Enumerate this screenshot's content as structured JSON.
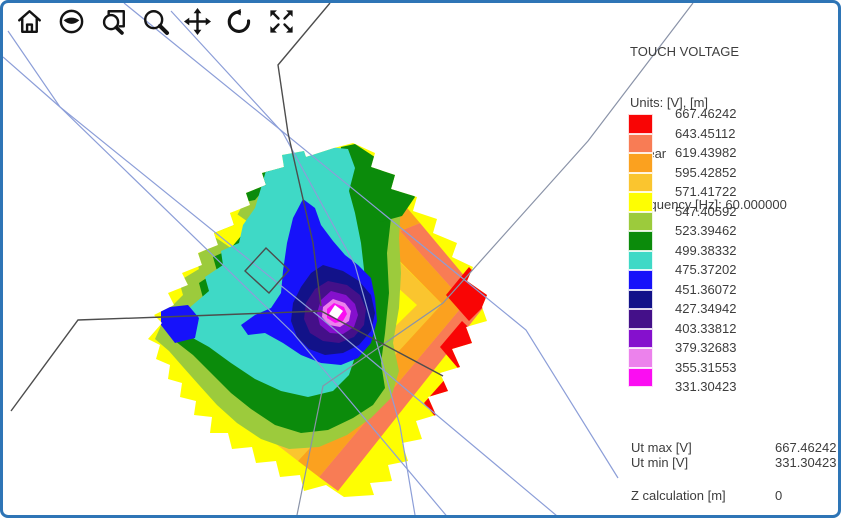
{
  "window": {
    "border_color": "#2E75B6",
    "background": "#FFFFFF"
  },
  "toolbar": {
    "icons": [
      {
        "name": "home-icon"
      },
      {
        "name": "eye-icon"
      },
      {
        "name": "zoom-window-icon"
      },
      {
        "name": "magnifier-icon"
      },
      {
        "name": "pan-icon"
      },
      {
        "name": "rotate-ccw-icon"
      },
      {
        "name": "expand-icon"
      }
    ]
  },
  "header": {
    "title": "TOUCH VOLTAGE",
    "units": "Units: [V], [m]",
    "scale": "Linear",
    "frequency": "Frequency [Hz]: 60.000000"
  },
  "legend": {
    "colors": [
      "#F90505",
      "#F87C55",
      "#FBA11F",
      "#FAC52F",
      "#FEFE02",
      "#9CCB3C",
      "#0B8B0B",
      "#3FD9C6",
      "#1612FA",
      "#121289",
      "#441089",
      "#8510CD",
      "#EC82EC",
      "#FB0DF2"
    ],
    "values": [
      "667.46242",
      "643.45112",
      "619.43982",
      "595.42852",
      "571.41722",
      "547.40592",
      "523.39462",
      "499.38332",
      "475.37202",
      "451.36072",
      "427.34942",
      "403.33812",
      "379.32683",
      "355.31553",
      "331.30423"
    ]
  },
  "stats": {
    "ut_max_label": "Ut max [V]",
    "ut_max_value": "667.46242",
    "ut_min_label": "Ut min [V]",
    "ut_min_value": "331.30423",
    "z_label": "Z calculation [m]",
    "z_value": "0"
  },
  "plot": {
    "conductor_color": "#8C9ED8",
    "slate_line_color": "#8A93A8",
    "grid_line_color": "#4D4D4D",
    "center_color": "#FFFFFF"
  },
  "chart_data": {
    "type": "heatmap",
    "subtype": "contour-map",
    "title": "TOUCH VOLTAGE",
    "value_unit": "V",
    "distance_unit": "m",
    "scale": "Linear",
    "frequency_hz": 60.0,
    "levels": [
      667.46242,
      643.45112,
      619.43982,
      595.42852,
      571.41722,
      547.40592,
      523.39462,
      499.38332,
      475.37202,
      451.36072,
      427.34942,
      403.33812,
      379.32683,
      355.31553,
      331.30423
    ],
    "level_step": 24.0113,
    "band_colors_max_to_min": [
      "#F90505",
      "#F87C55",
      "#FBA11F",
      "#FAC52F",
      "#FEFE02",
      "#9CCB3C",
      "#0B8B0B",
      "#3FD9C6",
      "#1612FA",
      "#121289",
      "#441089",
      "#8510CD",
      "#EC82EC",
      "#FB0DF2"
    ],
    "ut_max_v": 667.46242,
    "ut_min_v": 331.30423,
    "z_calculation_m": 0,
    "notes": "Diamond-shaped contour region; minimum (magenta/white) bullseye left of center of window, maximum (red) pockets on right edge"
  }
}
